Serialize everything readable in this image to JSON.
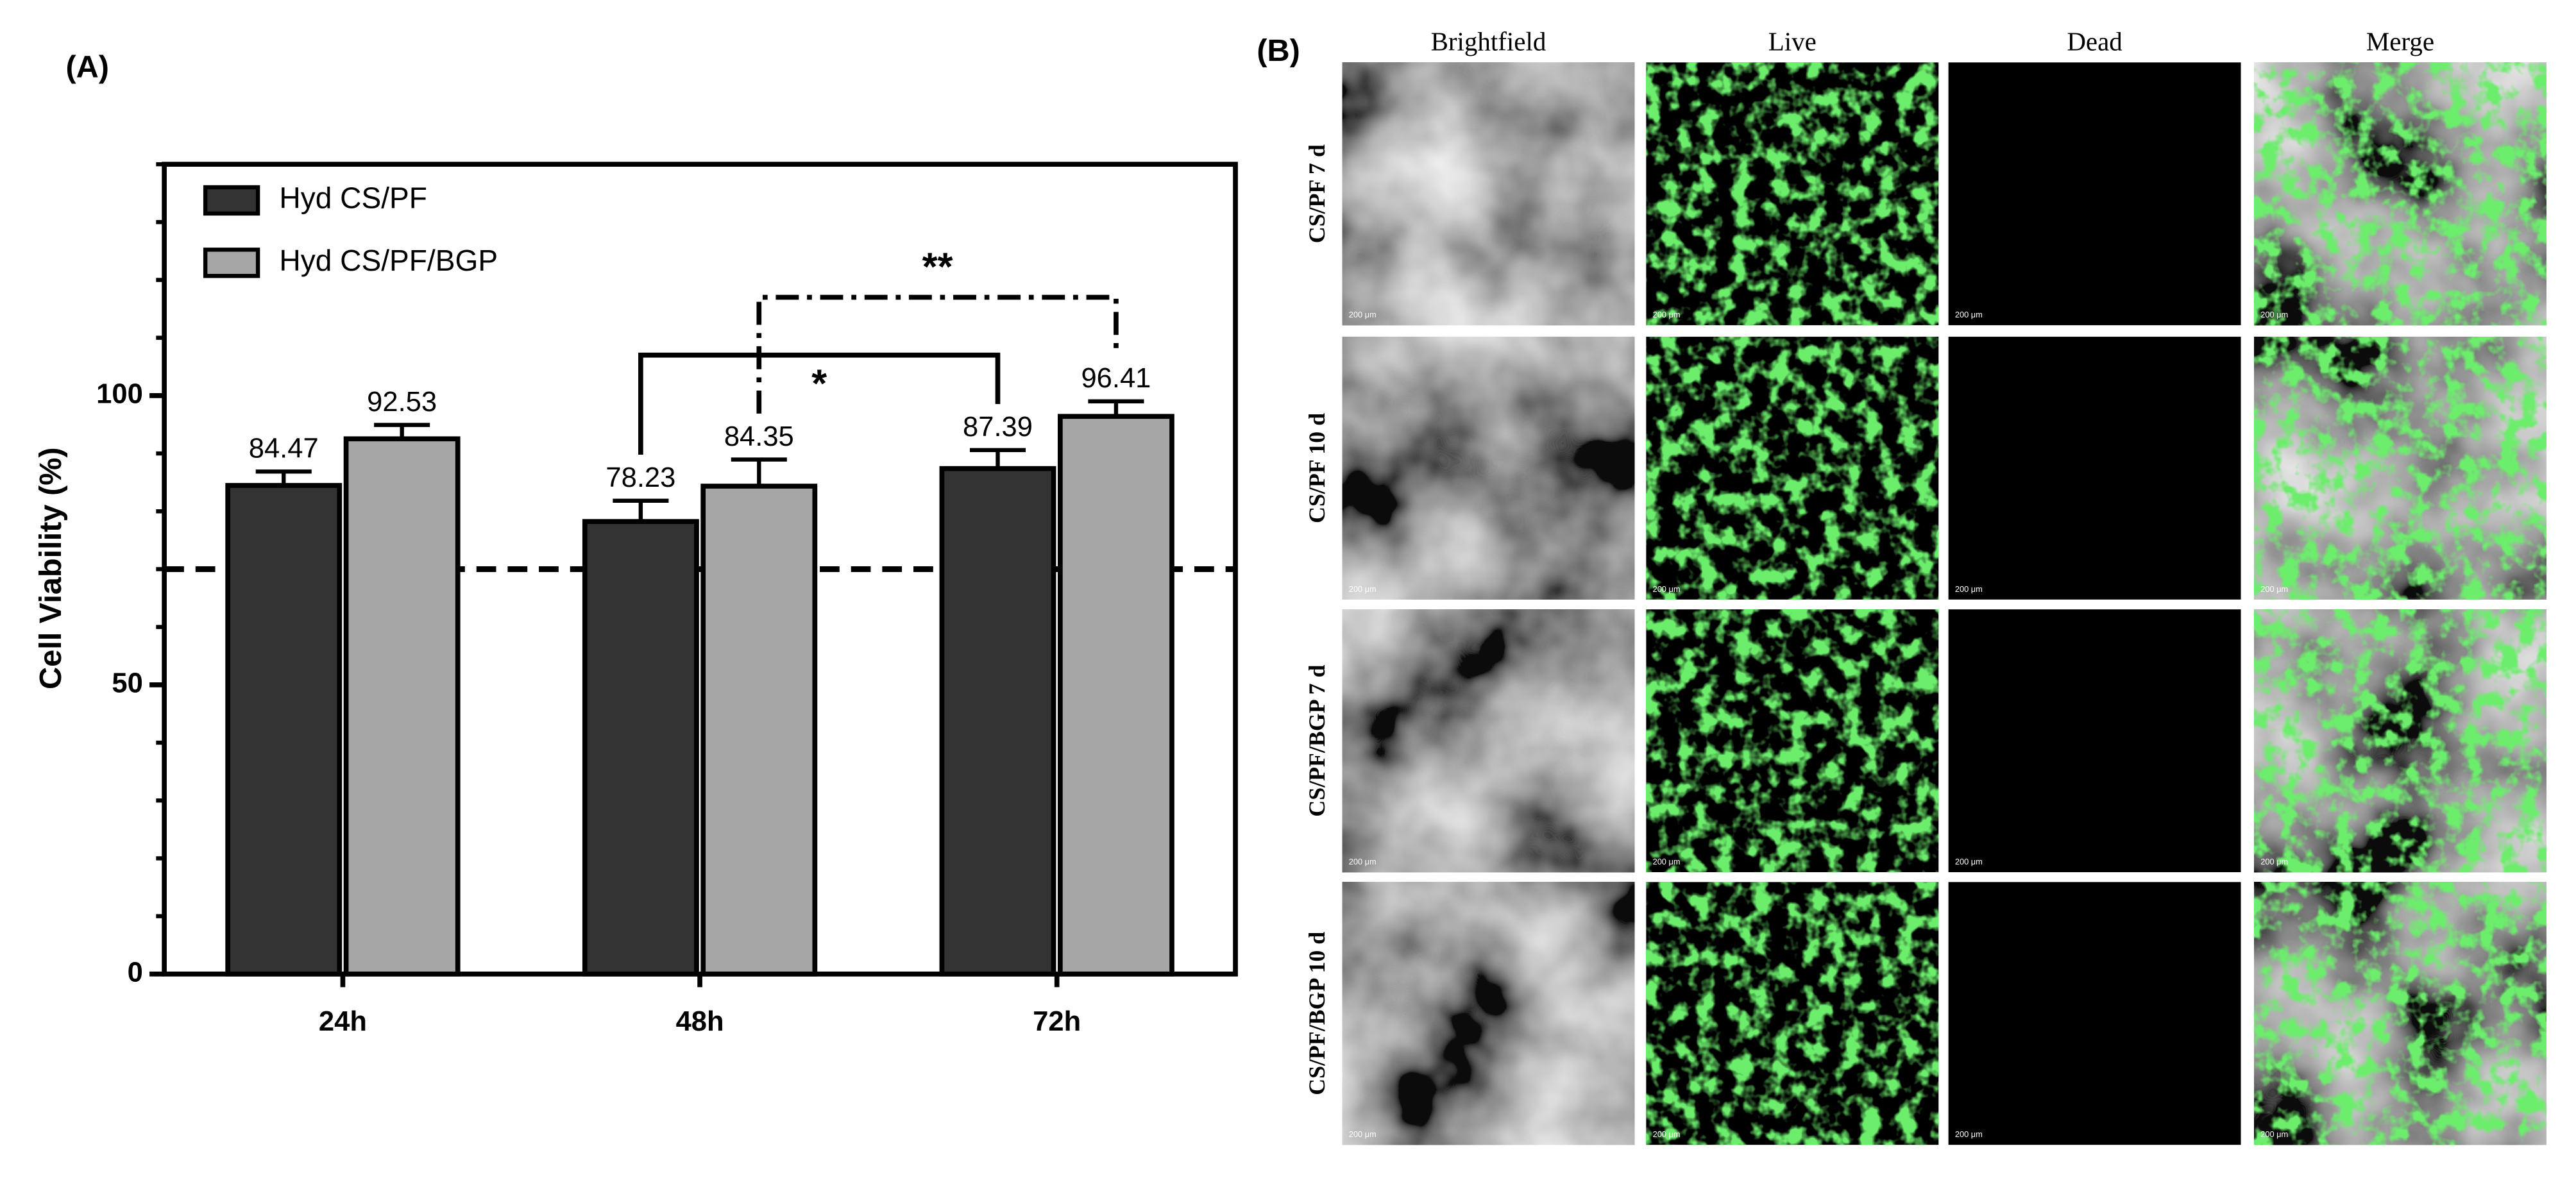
{
  "chart_data": {
    "type": "bar",
    "categories": [
      "24h",
      "48h",
      "72h"
    ],
    "series": [
      {
        "name": "Hyd CS/PF",
        "color": "#333333",
        "values": [
          84.47,
          78.23,
          87.39
        ],
        "errors": [
          2.4,
          3.6,
          3.2
        ]
      },
      {
        "name": "Hyd CS/PF/BGP",
        "color": "#a6a6a6",
        "values": [
          92.53,
          84.35,
          96.41
        ],
        "errors": [
          2.4,
          4.6,
          2.6
        ]
      }
    ],
    "y_label": "Cell Viability (%)",
    "ylim": [
      0,
      140
    ],
    "yticks": [
      0,
      50,
      100
    ],
    "yminorticks": [
      10,
      20,
      30,
      40,
      60,
      70,
      80,
      90,
      110,
      120,
      130,
      140
    ],
    "reference_line": 70,
    "legend": "top-left",
    "significance": [
      {
        "label": "*",
        "series": 0,
        "from": 1,
        "to": 2,
        "y": 107
      },
      {
        "label": "**",
        "series": 1,
        "from": 1,
        "to": 2,
        "y": 117
      }
    ]
  },
  "panel_labels": [
    "(A)",
    "(B)"
  ],
  "micrographs": {
    "columns": [
      "Brightfield",
      "Live",
      "Dead",
      "Merge"
    ],
    "rows": [
      "CS/PF 7 d",
      "CS/PF 10 d",
      "CS/PF/BGP 7 d",
      "CS/PF/BGP 10 d"
    ],
    "scale_bar": "200 μm"
  }
}
